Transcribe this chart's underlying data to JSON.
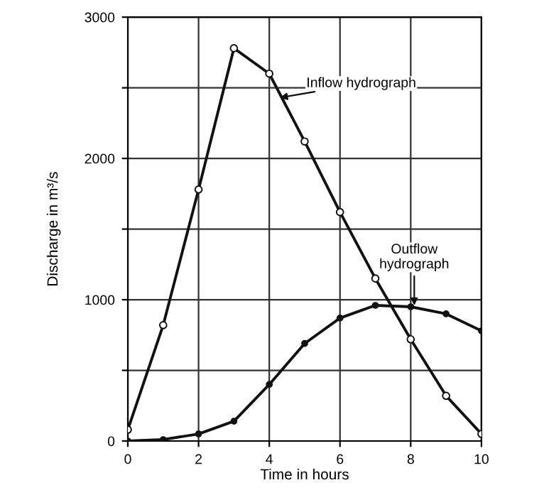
{
  "chart_data": {
    "type": "line",
    "xlabel": "Time in hours",
    "ylabel": "Discharge in m³/s",
    "x": [
      0,
      1,
      2,
      3,
      4,
      5,
      6,
      7,
      8,
      9,
      10
    ],
    "series": [
      {
        "color": "#111111",
        "marker": "circle",
        "values": [
          80,
          820,
          1780,
          2780,
          2600,
          2120,
          1620,
          1150,
          720,
          320,
          50
        ]
      },
      {
        "color": "#111111",
        "marker": "circle",
        "values": [
          0,
          10,
          50,
          140,
          400,
          690,
          870,
          960,
          950,
          900,
          780
        ]
      }
    ],
    "xlim": [
      0,
      10
    ],
    "xticks": [
      0,
      2,
      4,
      6,
      8,
      10
    ],
    "ylim": [
      0,
      3000
    ],
    "yticks": [
      0,
      {
        "value": 500,
        "label": null
      },
      1000,
      {
        "value": 1500,
        "label": null
      },
      2000,
      {
        "value": 2500,
        "label": null
      },
      3000
    ],
    "grid": true,
    "line_style": "solid",
    "annotations": [
      {
        "text": "Inflow hydrograph",
        "x": 4.3,
        "y": 2430
      },
      {
        "text": "Outflow\nhydrograph",
        "x": 8.1,
        "y": 960
      }
    ]
  }
}
